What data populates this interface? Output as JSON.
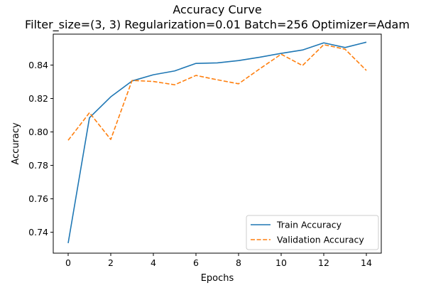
{
  "chart_data": {
    "type": "line",
    "title": "Accuracy Curve",
    "subtitle": "Filter_size=(3, 3) Regularization=0.01 Batch=256 Optimizer=Adam",
    "xlabel": "Epochs",
    "ylabel": "Accuracy",
    "x": [
      0,
      1,
      2,
      3,
      4,
      5,
      6,
      7,
      8,
      9,
      10,
      11,
      12,
      13,
      14
    ],
    "xlim": [
      -0.7,
      14.7
    ],
    "ylim": [
      0.7275,
      0.8585
    ],
    "xticks": [
      0,
      2,
      4,
      6,
      8,
      10,
      12,
      14
    ],
    "xtick_labels": [
      "0",
      "2",
      "4",
      "6",
      "8",
      "10",
      "12",
      "14"
    ],
    "yticks": [
      0.74,
      0.76,
      0.78,
      0.8,
      0.82,
      0.84
    ],
    "ytick_labels": [
      "0.74",
      "0.76",
      "0.78",
      "0.80",
      "0.82",
      "0.84"
    ],
    "grid": false,
    "legend_position": "lower right",
    "series": [
      {
        "name": "Train Accuracy",
        "color": "#1f77b4",
        "style": "solid",
        "values": [
          0.7335,
          0.8085,
          0.821,
          0.8305,
          0.8342,
          0.8365,
          0.841,
          0.8413,
          0.8427,
          0.8447,
          0.847,
          0.849,
          0.8533,
          0.8505,
          0.8537
        ]
      },
      {
        "name": "Validation Accuracy",
        "color": "#ff7f0e",
        "style": "dashed",
        "values": [
          0.795,
          0.8115,
          0.7955,
          0.8308,
          0.8302,
          0.8282,
          0.8338,
          0.8312,
          0.8288,
          0.8378,
          0.8465,
          0.8397,
          0.8522,
          0.8495,
          0.8368
        ]
      }
    ]
  }
}
